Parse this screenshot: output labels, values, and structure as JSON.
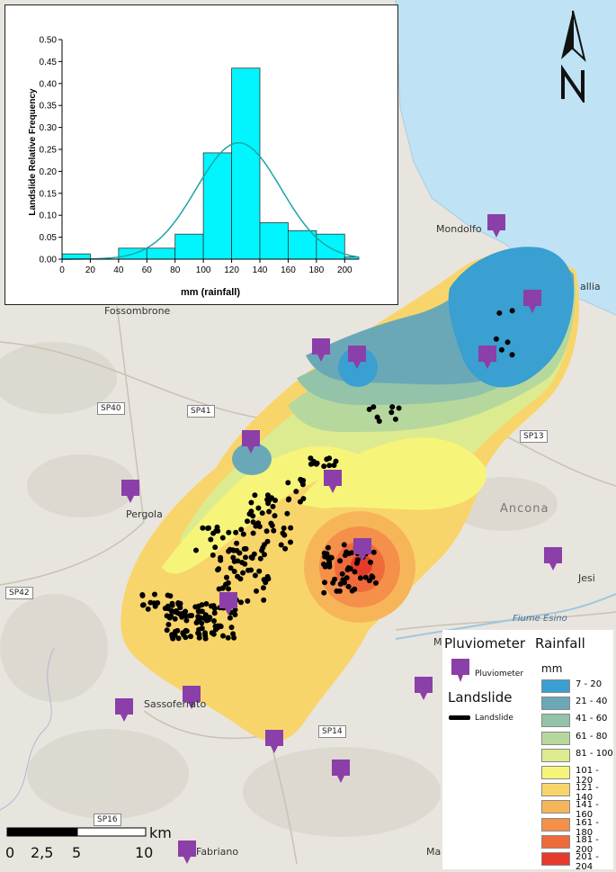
{
  "chart_data": {
    "type": "bar",
    "xlabel": "mm (rainfall)",
    "ylabel": "Landslide Relative Frequency",
    "xlim": [
      0,
      210
    ],
    "ylim": [
      0,
      0.5
    ],
    "xticks": [
      "0",
      "20",
      "40",
      "60",
      "80",
      "100",
      "120",
      "140",
      "160",
      "180",
      "200"
    ],
    "yticks": [
      "0.00",
      "0.05",
      "0.10",
      "0.15",
      "0.20",
      "0.25",
      "0.30",
      "0.35",
      "0.40",
      "0.45",
      "0.50"
    ],
    "bins": [
      {
        "from": 0,
        "to": 20,
        "value": 0.012
      },
      {
        "from": 20,
        "to": 40,
        "value": 0.0
      },
      {
        "from": 40,
        "to": 60,
        "value": 0.025
      },
      {
        "from": 60,
        "to": 80,
        "value": 0.025
      },
      {
        "from": 80,
        "to": 100,
        "value": 0.057
      },
      {
        "from": 100,
        "to": 120,
        "value": 0.242
      },
      {
        "from": 120,
        "to": 140,
        "value": 0.435
      },
      {
        "from": 140,
        "to": 160,
        "value": 0.083
      },
      {
        "from": 160,
        "to": 180,
        "value": 0.065
      },
      {
        "from": 180,
        "to": 200,
        "value": 0.057
      },
      {
        "from": 200,
        "to": 210,
        "value": 0.005
      }
    ],
    "fit_curve": {
      "mean": 125,
      "sd": 30,
      "peak": 0.265
    },
    "colors": {
      "bar": "#00f5ff",
      "curve": "#1aa5a5"
    }
  },
  "map": {
    "places": {
      "mondolfo": "Mondolfo",
      "fossombrone": "Fossombrone",
      "pergola": "Pergola",
      "ancona": "Ancona",
      "jesi": "Jesi",
      "sassoferrato": "Sassoferrato",
      "fabriano": "Fabriano",
      "senigallia": "allia",
      "ma_1": "M",
      "ma_2": "Ma"
    },
    "roads": {
      "sp40": "SP40",
      "sp41": "SP41",
      "sp13": "SP13",
      "sp42": "SP42",
      "sp14": "SP14",
      "sp16": "SP16"
    },
    "river": "Fiume Esino",
    "pin_color": "#8b3fa8",
    "landslide_color": "#000000"
  },
  "legend": {
    "pluviometer_title": "Pluviometer",
    "pluviometer_item": "Pluviometer",
    "rainfall_title": "Rainfall",
    "unit": "mm",
    "landslide_title": "Landslide",
    "landslide_item": "Landslide",
    "classes": [
      {
        "label": "7 - 20",
        "color": "#3a9fd1"
      },
      {
        "label": "21 - 40",
        "color": "#6aa8b8"
      },
      {
        "label": "41 - 60",
        "color": "#93c3a8"
      },
      {
        "label": "61 - 80",
        "color": "#b7d89c"
      },
      {
        "label": "81 - 100",
        "color": "#dceb8f"
      },
      {
        "label": "101 - 120",
        "color": "#f6f57a"
      },
      {
        "label": "121 - 140",
        "color": "#f8d56a"
      },
      {
        "label": "141 - 160",
        "color": "#f7b55a"
      },
      {
        "label": "161 - 180",
        "color": "#f4904a"
      },
      {
        "label": "181 - 200",
        "color": "#ef6a3a"
      },
      {
        "label": "201 - 204",
        "color": "#e63a2a"
      }
    ]
  },
  "scalebar": {
    "labels": [
      "0",
      "2,5",
      "5",
      "10"
    ],
    "unit": "km"
  }
}
